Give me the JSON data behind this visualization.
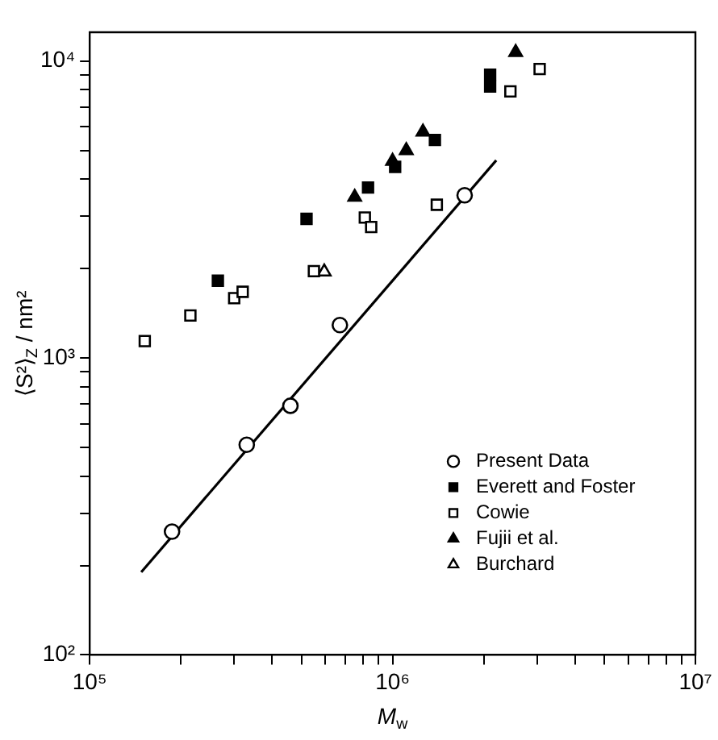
{
  "chart_data": {
    "type": "scatter",
    "xlabel": "M$_{w}$",
    "ylabel": "⟨S²⟩$_{Z}$ / nm²",
    "log": "xy",
    "grid": false,
    "legend": "bottom right",
    "xlim": [
      100000,
      10000000
    ],
    "ylim": [
      100,
      12500
    ],
    "xticks": [
      {
        "value": 100000,
        "label": "10⁵"
      },
      {
        "value": 200000,
        "label": null
      },
      {
        "value": 300000,
        "label": null
      },
      {
        "value": 400000,
        "label": null
      },
      {
        "value": 500000,
        "label": null
      },
      {
        "value": 600000,
        "label": null
      },
      {
        "value": 700000,
        "label": null
      },
      {
        "value": 800000,
        "label": null
      },
      {
        "value": 900000,
        "label": null
      },
      {
        "value": 1000000,
        "label": "10⁶"
      },
      {
        "value": 2000000,
        "label": null
      },
      {
        "value": 3000000,
        "label": null
      },
      {
        "value": 4000000,
        "label": null
      },
      {
        "value": 5000000,
        "label": null
      },
      {
        "value": 6000000,
        "label": null
      },
      {
        "value": 7000000,
        "label": null
      },
      {
        "value": 8000000,
        "label": null
      },
      {
        "value": 9000000,
        "label": null
      },
      {
        "value": 10000000,
        "label": "10⁷"
      }
    ],
    "yticks": [
      {
        "value": 100,
        "label": "10²"
      },
      {
        "value": 200,
        "label": null
      },
      {
        "value": 300,
        "label": null
      },
      {
        "value": 400,
        "label": null
      },
      {
        "value": 500,
        "label": null
      },
      {
        "value": 600,
        "label": null
      },
      {
        "value": 700,
        "label": null
      },
      {
        "value": 800,
        "label": null
      },
      {
        "value": 900,
        "label": null
      },
      {
        "value": 1000,
        "label": "10³"
      },
      {
        "value": 2000,
        "label": null
      },
      {
        "value": 3000,
        "label": null
      },
      {
        "value": 4000,
        "label": null
      },
      {
        "value": 5000,
        "label": null
      },
      {
        "value": 6000,
        "label": null
      },
      {
        "value": 7000,
        "label": null
      },
      {
        "value": 8000,
        "label": null
      },
      {
        "value": 9000,
        "label": null
      },
      {
        "value": 10000,
        "label": "10⁴"
      }
    ],
    "series": [
      {
        "name": "Present Data",
        "color": "#ffffff",
        "marker": "circle",
        "x": [
          187000,
          330000,
          460000,
          670000,
          1730000
        ],
        "values": [
          260,
          510,
          690,
          1290,
          3530
        ]
      },
      {
        "name": "Everett and Foster",
        "color": "#000000",
        "marker": "square",
        "x": [
          265000,
          520000,
          830000,
          1020000,
          1380000,
          2100000,
          2100000
        ],
        "values": [
          1820,
          2940,
          3750,
          4400,
          5420,
          8200,
          9000
        ]
      },
      {
        "name": "Cowie",
        "color": "#ffffff",
        "marker": "square",
        "x": [
          152000,
          215000,
          300000,
          320000,
          550000,
          810000,
          850000,
          1400000,
          2450000,
          3060000
        ],
        "values": [
          1140,
          1390,
          1590,
          1670,
          1960,
          2970,
          2760,
          3280,
          7900,
          9400
        ]
      },
      {
        "name": "Fujii et al.",
        "color": "#000000",
        "marker": "triangle",
        "x": [
          750000,
          1000000,
          1110000,
          1260000,
          2550000
        ],
        "values": [
          3480,
          4600,
          5000,
          5770,
          10700
        ]
      },
      {
        "name": "Burchard",
        "color": "#ffffff",
        "marker": "triangle",
        "x": [
          595000
        ],
        "values": [
          1950
        ]
      },
      {
        "type": "line",
        "color": "#000000",
        "marker": "none",
        "line_style": "solid",
        "x": [
          148000,
          2200000
        ],
        "values": [
          190,
          4630
        ]
      }
    ]
  }
}
